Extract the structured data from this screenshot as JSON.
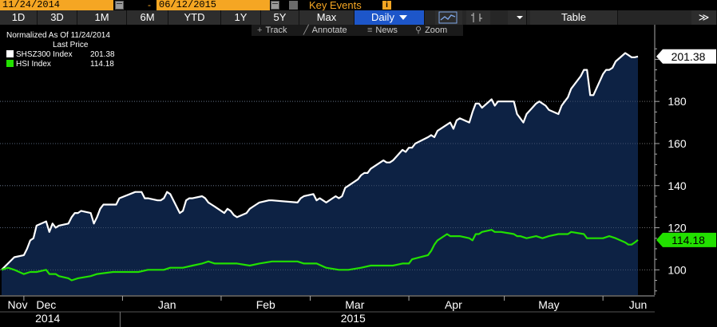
{
  "toolbar": {
    "start_date": "11/24/2014",
    "end_date": "06/12/2015",
    "date_separator": "-",
    "key_events_label": "Key Events",
    "key_events_info": "i",
    "ranges": [
      "1D",
      "3D",
      "1M",
      "6M",
      "YTD",
      "1Y",
      "5Y",
      "Max"
    ],
    "frequency": "Daily",
    "table_label": "Table",
    "expand_label": "≫"
  },
  "subtools": {
    "track": "Track",
    "annotate": "Annotate",
    "news": "News",
    "zoom": "Zoom"
  },
  "legend": {
    "line1": "Normalized As Of 11/24/2014",
    "line2": "Last Price",
    "entries": [
      {
        "name": "SHSZ300 Index",
        "value": "201.38",
        "color": "#ffffff"
      },
      {
        "name": "HSI Index",
        "value": "114.18",
        "color": "#22e000"
      }
    ]
  },
  "colors": {
    "accent": "#f5a623",
    "active_button": "#1d56c9",
    "area_fill": "#0d2244",
    "hsi": "#22e000",
    "shsz": "#ffffff"
  },
  "chart_data": {
    "type": "line",
    "title": "",
    "xlabel": "",
    "ylabel": "",
    "ylim": [
      88,
      210
    ],
    "yticks": [
      100,
      120,
      140,
      160,
      180
    ],
    "x_start": "2014-11-24",
    "x_end": "2015-06-12",
    "month_ticks": [
      {
        "label": "Nov",
        "date": "2014-11-24"
      },
      {
        "label": "Dec",
        "date": "2014-12-08"
      },
      {
        "label": "Jan",
        "date": "2015-01-15"
      },
      {
        "label": "Feb",
        "date": "2015-02-15"
      },
      {
        "label": "Mar",
        "date": "2015-03-15"
      },
      {
        "label": "Apr",
        "date": "2015-04-15"
      },
      {
        "label": "May",
        "date": "2015-05-15"
      },
      {
        "label": "Jun",
        "date": "2015-06-12"
      }
    ],
    "month_separators": [
      "2014-12-01",
      "2015-01-01",
      "2015-02-01",
      "2015-03-01",
      "2015-04-01",
      "2015-05-01",
      "2015-06-01"
    ],
    "year_labels": [
      {
        "label": "2014",
        "date": "2014-12-12"
      },
      {
        "label": "2015",
        "date": "2015-03-18"
      }
    ],
    "year_separator": "2015-01-01",
    "series": [
      {
        "name": "SHSZ300 Index",
        "last": "201.38",
        "color": "#ffffff",
        "fill": true,
        "points": [
          [
            "2014-11-24",
            100
          ],
          [
            "2014-11-26",
            103
          ],
          [
            "2014-11-28",
            106
          ],
          [
            "2014-12-01",
            107
          ],
          [
            "2014-12-02",
            110
          ],
          [
            "2014-12-03",
            114
          ],
          [
            "2014-12-04",
            115
          ],
          [
            "2014-12-05",
            121
          ],
          [
            "2014-12-08",
            123
          ],
          [
            "2014-12-09",
            118
          ],
          [
            "2014-12-10",
            122
          ],
          [
            "2014-12-11",
            120
          ],
          [
            "2014-12-12",
            121
          ],
          [
            "2014-12-15",
            122
          ],
          [
            "2014-12-16",
            125
          ],
          [
            "2014-12-17",
            127
          ],
          [
            "2014-12-18",
            127
          ],
          [
            "2014-12-19",
            128
          ],
          [
            "2014-12-22",
            127
          ],
          [
            "2014-12-23",
            122
          ],
          [
            "2014-12-24",
            125
          ],
          [
            "2014-12-25",
            129
          ],
          [
            "2014-12-26",
            131
          ],
          [
            "2014-12-29",
            131
          ],
          [
            "2014-12-30",
            131
          ],
          [
            "2014-12-31",
            134
          ],
          [
            "2015-01-05",
            137
          ],
          [
            "2015-01-06",
            137
          ],
          [
            "2015-01-07",
            137
          ],
          [
            "2015-01-08",
            134
          ],
          [
            "2015-01-09",
            134
          ],
          [
            "2015-01-12",
            133
          ],
          [
            "2015-01-13",
            133
          ],
          [
            "2015-01-14",
            134
          ],
          [
            "2015-01-15",
            137
          ],
          [
            "2015-01-16",
            136
          ],
          [
            "2015-01-19",
            127
          ],
          [
            "2015-01-20",
            128
          ],
          [
            "2015-01-21",
            133
          ],
          [
            "2015-01-22",
            134
          ],
          [
            "2015-01-23",
            134
          ],
          [
            "2015-01-26",
            135
          ],
          [
            "2015-01-27",
            134
          ],
          [
            "2015-01-28",
            132
          ],
          [
            "2015-01-29",
            131
          ],
          [
            "2015-01-30",
            130
          ],
          [
            "2015-02-02",
            127
          ],
          [
            "2015-02-03",
            129
          ],
          [
            "2015-02-04",
            128
          ],
          [
            "2015-02-05",
            126
          ],
          [
            "2015-02-06",
            125
          ],
          [
            "2015-02-09",
            127
          ],
          [
            "2015-02-10",
            129
          ],
          [
            "2015-02-11",
            130
          ],
          [
            "2015-02-12",
            131
          ],
          [
            "2015-02-13",
            132
          ],
          [
            "2015-02-16",
            133
          ],
          [
            "2015-02-17",
            133
          ],
          [
            "2015-02-25",
            132
          ],
          [
            "2015-02-26",
            134
          ],
          [
            "2015-02-27",
            135
          ],
          [
            "2015-03-02",
            136
          ],
          [
            "2015-03-03",
            133
          ],
          [
            "2015-03-04",
            134
          ],
          [
            "2015-03-05",
            133
          ],
          [
            "2015-03-06",
            132
          ],
          [
            "2015-03-09",
            135
          ],
          [
            "2015-03-10",
            134
          ],
          [
            "2015-03-11",
            135
          ],
          [
            "2015-03-12",
            139
          ],
          [
            "2015-03-13",
            140
          ],
          [
            "2015-03-16",
            143
          ],
          [
            "2015-03-17",
            145
          ],
          [
            "2015-03-18",
            146
          ],
          [
            "2015-03-19",
            146
          ],
          [
            "2015-03-20",
            148
          ],
          [
            "2015-03-23",
            151
          ],
          [
            "2015-03-24",
            152
          ],
          [
            "2015-03-25",
            151
          ],
          [
            "2015-03-26",
            151
          ],
          [
            "2015-03-27",
            152
          ],
          [
            "2015-03-30",
            157
          ],
          [
            "2015-03-31",
            156
          ],
          [
            "2015-04-01",
            158
          ],
          [
            "2015-04-02",
            158
          ],
          [
            "2015-04-03",
            160
          ],
          [
            "2015-04-07",
            163
          ],
          [
            "2015-04-08",
            164
          ],
          [
            "2015-04-09",
            163
          ],
          [
            "2015-04-10",
            166
          ],
          [
            "2015-04-13",
            169
          ],
          [
            "2015-04-14",
            170
          ],
          [
            "2015-04-15",
            167
          ],
          [
            "2015-04-16",
            171
          ],
          [
            "2015-04-17",
            172
          ],
          [
            "2015-04-20",
            170
          ],
          [
            "2015-04-21",
            175
          ],
          [
            "2015-04-22",
            179
          ],
          [
            "2015-04-23",
            179
          ],
          [
            "2015-04-24",
            177
          ],
          [
            "2015-04-27",
            181
          ],
          [
            "2015-04-28",
            178
          ],
          [
            "2015-04-29",
            180
          ],
          [
            "2015-04-30",
            180
          ],
          [
            "2015-05-04",
            180
          ],
          [
            "2015-05-05",
            174
          ],
          [
            "2015-05-06",
            172
          ],
          [
            "2015-05-07",
            170
          ],
          [
            "2015-05-08",
            174
          ],
          [
            "2015-05-11",
            179
          ],
          [
            "2015-05-12",
            180
          ],
          [
            "2015-05-13",
            179
          ],
          [
            "2015-05-14",
            178
          ],
          [
            "2015-05-15",
            176
          ],
          [
            "2015-05-18",
            174
          ],
          [
            "2015-05-19",
            178
          ],
          [
            "2015-05-20",
            180
          ],
          [
            "2015-05-21",
            182
          ],
          [
            "2015-05-22",
            186
          ],
          [
            "2015-05-25",
            192
          ],
          [
            "2015-05-26",
            195
          ],
          [
            "2015-05-27",
            195
          ],
          [
            "2015-05-28",
            183
          ],
          [
            "2015-05-29",
            183
          ],
          [
            "2015-06-01",
            193
          ],
          [
            "2015-06-02",
            195
          ],
          [
            "2015-06-03",
            195
          ],
          [
            "2015-06-04",
            196
          ],
          [
            "2015-06-05",
            199
          ],
          [
            "2015-06-08",
            203
          ],
          [
            "2015-06-09",
            202
          ],
          [
            "2015-06-10",
            201
          ],
          [
            "2015-06-11",
            201
          ],
          [
            "2015-06-12",
            201.38
          ]
        ]
      },
      {
        "name": "HSI Index",
        "last": "114.18",
        "color": "#22e000",
        "fill": false,
        "points": [
          [
            "2014-11-24",
            100
          ],
          [
            "2014-11-26",
            101
          ],
          [
            "2014-11-28",
            100
          ],
          [
            "2014-12-01",
            98
          ],
          [
            "2014-12-03",
            99
          ],
          [
            "2014-12-05",
            99
          ],
          [
            "2014-12-08",
            100
          ],
          [
            "2014-12-09",
            98
          ],
          [
            "2014-12-11",
            98
          ],
          [
            "2014-12-12",
            97
          ],
          [
            "2014-12-15",
            96
          ],
          [
            "2014-12-16",
            95
          ],
          [
            "2014-12-18",
            96
          ],
          [
            "2014-12-22",
            97
          ],
          [
            "2014-12-24",
            98
          ],
          [
            "2014-12-29",
            99
          ],
          [
            "2015-01-02",
            99
          ],
          [
            "2015-01-06",
            99
          ],
          [
            "2015-01-09",
            100
          ],
          [
            "2015-01-12",
            100
          ],
          [
            "2015-01-14",
            100
          ],
          [
            "2015-01-16",
            101
          ],
          [
            "2015-01-20",
            101
          ],
          [
            "2015-01-23",
            102
          ],
          [
            "2015-01-26",
            103
          ],
          [
            "2015-01-28",
            104
          ],
          [
            "2015-01-30",
            103
          ],
          [
            "2015-02-03",
            103
          ],
          [
            "2015-02-06",
            103
          ],
          [
            "2015-02-10",
            102
          ],
          [
            "2015-02-13",
            103
          ],
          [
            "2015-02-17",
            104
          ],
          [
            "2015-02-20",
            104
          ],
          [
            "2015-02-25",
            104
          ],
          [
            "2015-02-27",
            103
          ],
          [
            "2015-03-03",
            103
          ],
          [
            "2015-03-06",
            101
          ],
          [
            "2015-03-10",
            100
          ],
          [
            "2015-03-13",
            100
          ],
          [
            "2015-03-17",
            101
          ],
          [
            "2015-03-20",
            102
          ],
          [
            "2015-03-24",
            102
          ],
          [
            "2015-03-27",
            102
          ],
          [
            "2015-03-30",
            103
          ],
          [
            "2015-04-01",
            103
          ],
          [
            "2015-04-02",
            105
          ],
          [
            "2015-04-07",
            107
          ],
          [
            "2015-04-08",
            109
          ],
          [
            "2015-04-09",
            112
          ],
          [
            "2015-04-10",
            114
          ],
          [
            "2015-04-13",
            117
          ],
          [
            "2015-04-14",
            116
          ],
          [
            "2015-04-16",
            116
          ],
          [
            "2015-04-17",
            116
          ],
          [
            "2015-04-20",
            115
          ],
          [
            "2015-04-21",
            114
          ],
          [
            "2015-04-22",
            117
          ],
          [
            "2015-04-23",
            117
          ],
          [
            "2015-04-24",
            118
          ],
          [
            "2015-04-27",
            119
          ],
          [
            "2015-04-28",
            118
          ],
          [
            "2015-04-30",
            118
          ],
          [
            "2015-05-04",
            117
          ],
          [
            "2015-05-05",
            116
          ],
          [
            "2015-05-06",
            116
          ],
          [
            "2015-05-08",
            115
          ],
          [
            "2015-05-11",
            116
          ],
          [
            "2015-05-13",
            115
          ],
          [
            "2015-05-15",
            116
          ],
          [
            "2015-05-18",
            117
          ],
          [
            "2015-05-19",
            117
          ],
          [
            "2015-05-21",
            117
          ],
          [
            "2015-05-22",
            118
          ],
          [
            "2015-05-26",
            117
          ],
          [
            "2015-05-27",
            115
          ],
          [
            "2015-05-28",
            115
          ],
          [
            "2015-06-01",
            115
          ],
          [
            "2015-06-03",
            116
          ],
          [
            "2015-06-05",
            115
          ],
          [
            "2015-06-08",
            113
          ],
          [
            "2015-06-09",
            112
          ],
          [
            "2015-06-10",
            112
          ],
          [
            "2015-06-11",
            113
          ],
          [
            "2015-06-12",
            114.18
          ]
        ]
      }
    ]
  }
}
